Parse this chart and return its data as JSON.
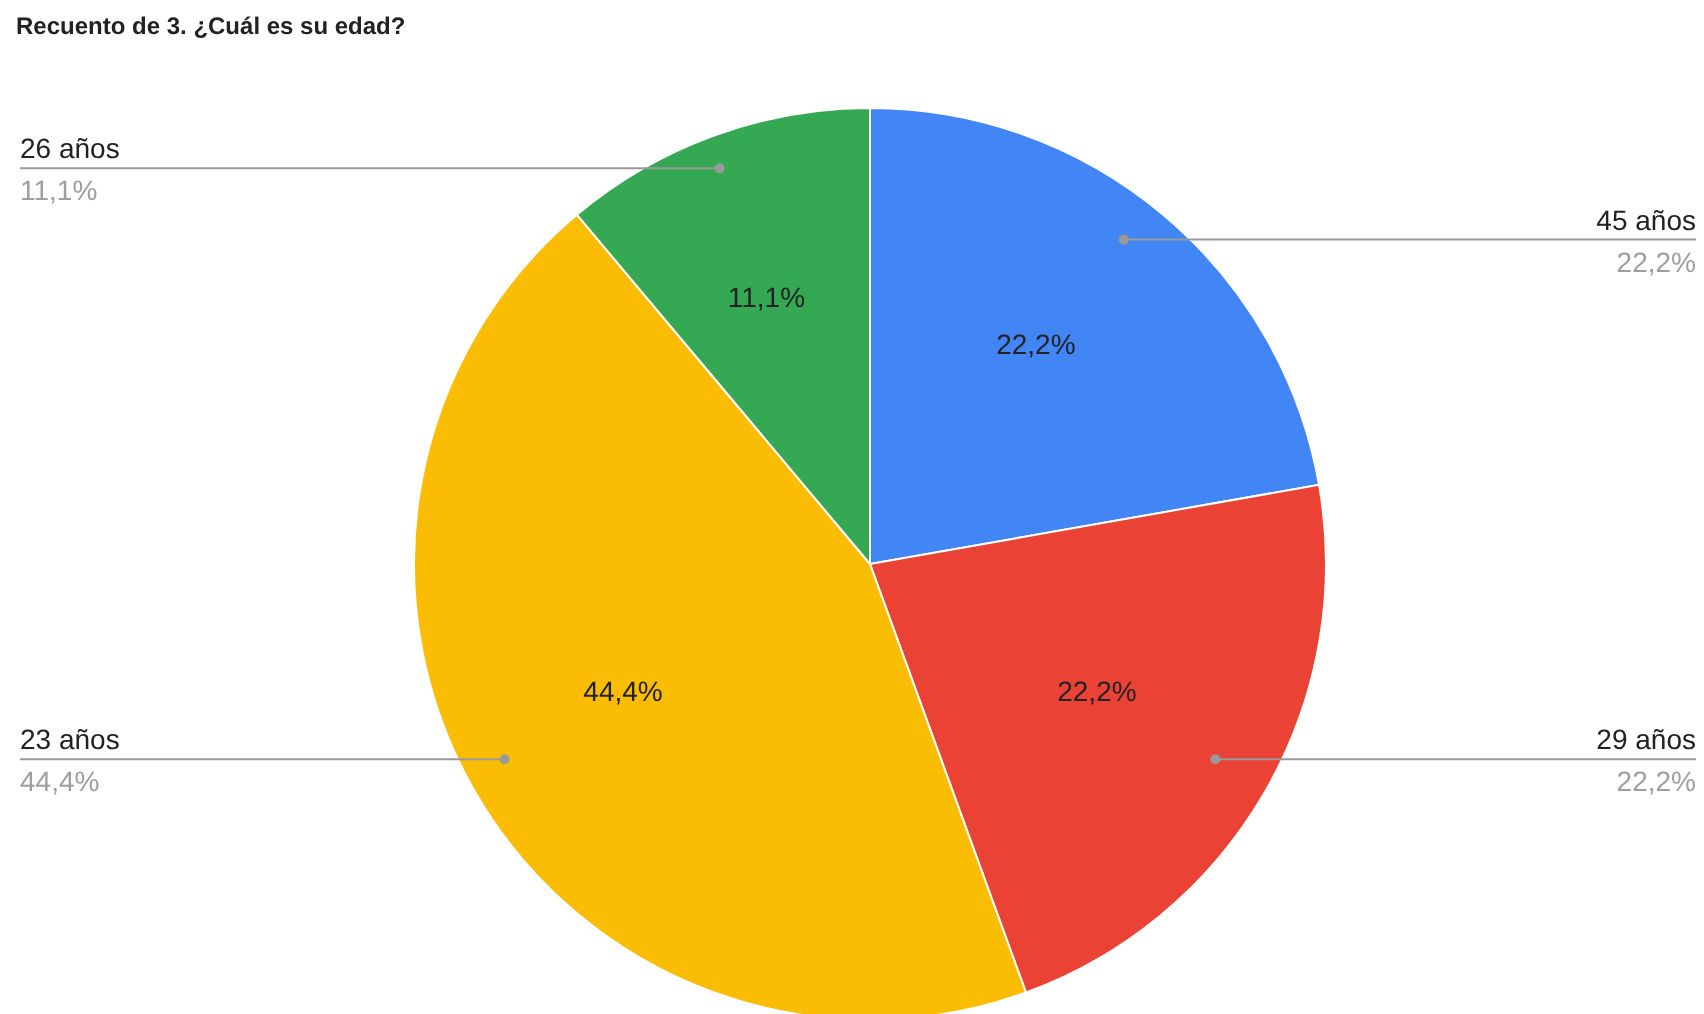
{
  "chart_data": {
    "type": "pie",
    "title": "Recuento de 3. ¿Cuál es su edad?",
    "categories": [
      "45 años",
      "29 años",
      "23 años",
      "26 años"
    ],
    "values": [
      22.2,
      22.2,
      44.4,
      11.1
    ],
    "colors": [
      "#4285f4",
      "#ea4335",
      "#fbbc04",
      "#34a853"
    ],
    "value_labels": [
      "22,2%",
      "22,2%",
      "44,4%",
      "11,1%"
    ]
  }
}
